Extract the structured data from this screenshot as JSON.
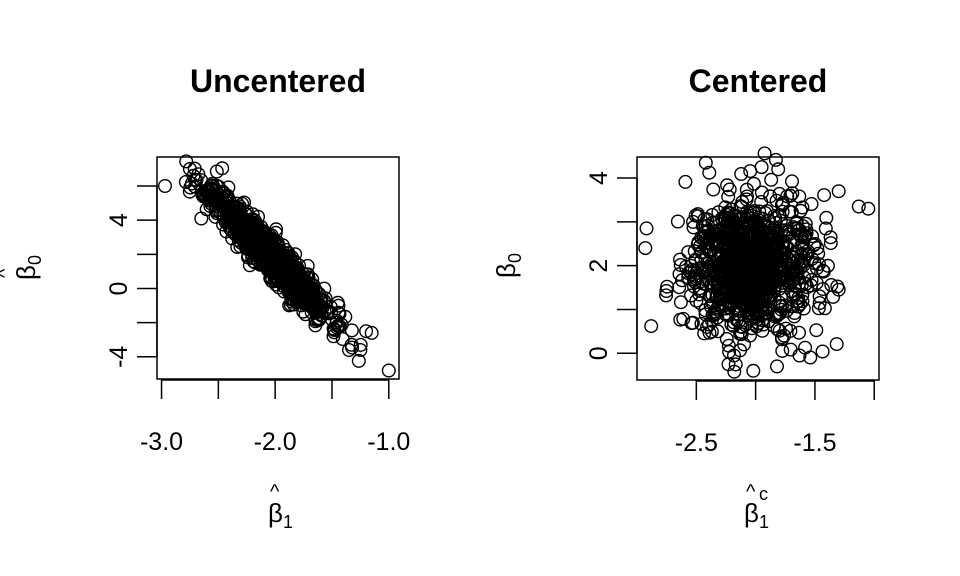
{
  "chart_data": [
    {
      "type": "scatter",
      "title": "Uncentered",
      "xlabel": "β̂1",
      "xlabel_symbol": "β",
      "xlabel_sub": "1",
      "ylabel": "β̂0",
      "ylabel_symbol": "β",
      "ylabel_sub": "0",
      "xlim": [
        -3.04,
        -0.91
      ],
      "ylim": [
        -5.3,
        7.7
      ],
      "xticks": [
        -3.0,
        -2.5,
        -2.0,
        -1.5,
        -1.0
      ],
      "xtick_labels": [
        "-3.0",
        "",
        "-2.0",
        "",
        "-1.0"
      ],
      "yticks": [
        -4,
        -2,
        0,
        2,
        4,
        6
      ],
      "ytick_labels": [
        "-4",
        "",
        "0",
        "",
        "4",
        ""
      ],
      "marker": "open-circle",
      "grid": false,
      "cloud": {
        "n": 1000,
        "x_mean": -2.05,
        "x_sd": 0.26,
        "y_mean": 2.0,
        "slope": -6.7,
        "resid_sd": 0.6,
        "seed": 11
      },
      "points": [
        [
          -2.97,
          6.0
        ],
        [
          -1.0,
          -4.8
        ],
        [
          -2.75,
          7.0
        ],
        [
          -2.72,
          6.6
        ],
        [
          -2.65,
          4.1
        ],
        [
          -1.35,
          -3.6
        ],
        [
          -1.2,
          -2.5
        ],
        [
          -1.25,
          -3.6
        ],
        [
          -1.15,
          -2.6
        ]
      ]
    },
    {
      "type": "scatter",
      "title": "Centered",
      "xlabel": "β̂1c",
      "xlabel_symbol": "β",
      "xlabel_sub": "1",
      "xlabel_sup": "c",
      "ylabel": "β0",
      "ylabel_symbol": "β",
      "ylabel_sub": "0",
      "xlim": [
        -3.0,
        -0.96
      ],
      "ylim": [
        -0.61,
        4.48
      ],
      "xticks": [
        -2.5,
        -2.0,
        -1.5,
        -1.0
      ],
      "xtick_labels": [
        "-2.5",
        "",
        "-1.5",
        ""
      ],
      "yticks": [
        0,
        1,
        2,
        3,
        4
      ],
      "ytick_labels": [
        "0",
        "",
        "2",
        "",
        "4"
      ],
      "marker": "open-circle",
      "grid": false,
      "cloud": {
        "n": 1000,
        "x_mean": -2.05,
        "x_sd": 0.26,
        "y_mean": 2.0,
        "y_sd": 0.75,
        "seed": 29
      },
      "points": [
        [
          -2.88,
          0.62
        ],
        [
          -2.92,
          2.85
        ],
        [
          -2.93,
          2.4
        ],
        [
          -1.05,
          3.3
        ],
        [
          -1.13,
          3.35
        ],
        [
          -1.3,
          1.45
        ],
        [
          -2.18,
          -0.42
        ],
        [
          -2.02,
          -0.4
        ],
        [
          -1.82,
          -0.3
        ],
        [
          -1.63,
          -0.05
        ],
        [
          -2.42,
          4.35
        ],
        [
          -1.95,
          4.25
        ],
        [
          -1.81,
          4.2
        ],
        [
          -1.3,
          3.7
        ]
      ]
    }
  ]
}
